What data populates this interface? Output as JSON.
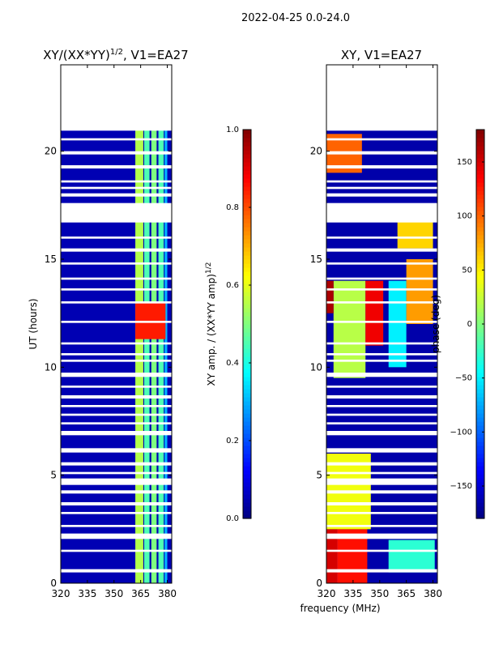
{
  "suptitle": "2022-04-25 0.0-24.0",
  "chart_data": [
    {
      "type": "heatmap",
      "title_main": "XY/(XX*YY)",
      "title_exp": "1/2",
      "title_rest": ", V1=EA27",
      "xlabel": "",
      "ylabel": "UT (hours)",
      "xlim": [
        320,
        382.5
      ],
      "ylim": [
        0,
        24
      ],
      "xticks": [
        {
          "v": 320,
          "label": "320"
        },
        {
          "v": 335,
          "label": "335"
        },
        {
          "v": 350,
          "label": "350"
        },
        {
          "v": 365,
          "label": "365"
        },
        {
          "v": 380,
          "label": "380"
        }
      ],
      "yticks": [
        {
          "v": 0,
          "label": "0"
        },
        {
          "v": 5,
          "label": "5"
        },
        {
          "v": 10,
          "label": "10"
        },
        {
          "v": 15,
          "label": "15"
        },
        {
          "v": 20,
          "label": "20"
        }
      ],
      "colorbar": {
        "label_main": "XY amp. / (XX*YY amp)",
        "label_exp": "1/2",
        "range": [
          0.0,
          1.0
        ],
        "ticks": [
          {
            "v": 0.0,
            "label": "0.0"
          },
          {
            "v": 0.2,
            "label": "0.2"
          },
          {
            "v": 0.4,
            "label": "0.4"
          },
          {
            "v": 0.6,
            "label": "0.6"
          },
          {
            "v": 0.8,
            "label": "0.8"
          },
          {
            "v": 1.0,
            "label": "1.0"
          }
        ]
      },
      "background_value": 0.05,
      "feature_bands": [
        {
          "x": [
            362.0,
            366.5
          ],
          "value": 0.55
        },
        {
          "x": [
            367.0,
            370.0
          ],
          "value": 0.45
        },
        {
          "x": [
            371.0,
            374.0
          ],
          "value": 0.5
        },
        {
          "x": [
            375.0,
            378.0
          ],
          "value": 0.45
        },
        {
          "x": [
            378.5,
            380.0
          ],
          "value": 0.3
        }
      ],
      "highlight": {
        "x": [
          362.0,
          379.0
        ],
        "y": [
          11.3,
          13.0
        ],
        "value": 0.85
      }
    },
    {
      "type": "heatmap",
      "title": "XY, V1=EA27",
      "xlabel": "frequency (MHz)",
      "ylabel": "",
      "xlim": [
        320,
        382.5
      ],
      "ylim": [
        0,
        24
      ],
      "xticks": [
        {
          "v": 320,
          "label": "320"
        },
        {
          "v": 335,
          "label": "335"
        },
        {
          "v": 350,
          "label": "350"
        },
        {
          "v": 365,
          "label": "365"
        },
        {
          "v": 380,
          "label": "380"
        }
      ],
      "yticks": [
        {
          "v": 0,
          "label": "0"
        },
        {
          "v": 5,
          "label": "5"
        },
        {
          "v": 10,
          "label": "10"
        },
        {
          "v": 15,
          "label": "15"
        },
        {
          "v": 20,
          "label": "20"
        }
      ],
      "colorbar": {
        "label": "phase (deg)",
        "range": [
          -180,
          180
        ],
        "ticks": [
          {
            "v": 150,
            "label": "150"
          },
          {
            "v": 100,
            "label": "100"
          },
          {
            "v": 50,
            "label": "50"
          },
          {
            "v": 0,
            "label": "0"
          },
          {
            "v": -50,
            "label": "−50"
          },
          {
            "v": -100,
            "label": "−100"
          },
          {
            "v": -150,
            "label": "−150"
          }
        ]
      },
      "background_value": -165,
      "bands": [
        {
          "x": [
            320,
            326
          ],
          "y": [
            0,
            2.5
          ],
          "value": 150
        },
        {
          "x": [
            326,
            343
          ],
          "y": [
            0,
            2.5
          ],
          "value": 130
        },
        {
          "x": [
            320,
            345
          ],
          "y": [
            2.5,
            6
          ],
          "value": 40
        },
        {
          "x": [
            324,
            342
          ],
          "y": [
            9.5,
            14
          ],
          "value": 20
        },
        {
          "x": [
            320,
            324
          ],
          "y": [
            12.5,
            14
          ],
          "value": 165
        },
        {
          "x": [
            342,
            352
          ],
          "y": [
            11,
            14
          ],
          "value": 140
        },
        {
          "x": [
            355,
            381
          ],
          "y": [
            0.5,
            2
          ],
          "value": -30
        },
        {
          "x": [
            355,
            365
          ],
          "y": [
            10,
            14
          ],
          "value": -50
        },
        {
          "x": [
            365,
            380
          ],
          "y": [
            12,
            15
          ],
          "value": 80
        },
        {
          "x": [
            360,
            380
          ],
          "y": [
            15.5,
            17
          ],
          "value": 60
        },
        {
          "x": [
            320,
            340
          ],
          "y": [
            19,
            20.8
          ],
          "value": 100
        }
      ]
    }
  ],
  "data_gaps_hours": [
    [
      0.5,
      0.65
    ],
    [
      1.45,
      1.55
    ],
    [
      2.05,
      2.3
    ],
    [
      2.6,
      2.7
    ],
    [
      3.2,
      3.3
    ],
    [
      3.6,
      3.75
    ],
    [
      4.15,
      4.3
    ],
    [
      4.55,
      4.85
    ],
    [
      5.05,
      5.15
    ],
    [
      5.45,
      5.6
    ],
    [
      6.05,
      6.25
    ],
    [
      6.85,
      7.05
    ],
    [
      7.35,
      7.45
    ],
    [
      7.75,
      7.85
    ],
    [
      8.15,
      8.25
    ],
    [
      8.55,
      8.7
    ],
    [
      9.05,
      9.15
    ],
    [
      9.55,
      9.75
    ],
    [
      10.25,
      10.35
    ],
    [
      10.55,
      10.65
    ],
    [
      11.05,
      11.15
    ],
    [
      12.05,
      12.15
    ],
    [
      12.95,
      13.05
    ],
    [
      13.55,
      13.65
    ],
    [
      14.05,
      14.15
    ],
    [
      14.75,
      14.85
    ],
    [
      15.35,
      15.5
    ],
    [
      15.95,
      16.05
    ],
    [
      16.7,
      17.6
    ],
    [
      17.9,
      18.05
    ],
    [
      18.25,
      18.35
    ],
    [
      18.55,
      18.65
    ],
    [
      19.2,
      19.35
    ],
    [
      19.85,
      20.0
    ],
    [
      20.5,
      20.6
    ],
    [
      20.95,
      24.0
    ]
  ]
}
